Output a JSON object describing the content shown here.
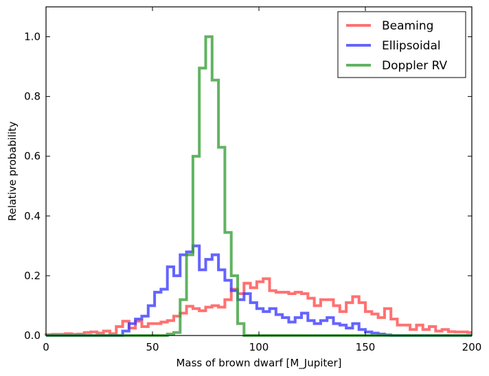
{
  "chart_data": {
    "type": "step-histogram",
    "xlabel": "Mass of brown dwarf [M_Jupiter]",
    "ylabel": "Relative probability",
    "xlim": [
      0,
      200
    ],
    "ylim": [
      0,
      1.1
    ],
    "xticks": [
      0,
      50,
      100,
      150,
      200
    ],
    "xtick_labels": [
      "0",
      "50",
      "100",
      "150",
      "200"
    ],
    "yticks": [
      0.0,
      0.2,
      0.4,
      0.6,
      0.8,
      1.0
    ],
    "ytick_labels": [
      "0.0",
      "0.2",
      "0.4",
      "0.6",
      "0.8",
      "1.0"
    ],
    "legend_position": "top-right",
    "grid": false,
    "bin_edges": [
      0,
      3,
      6,
      9,
      12,
      15,
      18,
      21,
      24,
      27,
      30,
      33,
      36,
      39,
      42,
      45,
      48,
      51,
      54,
      57,
      60,
      63,
      66,
      69,
      72,
      75,
      78,
      81,
      84,
      87,
      90,
      93,
      96,
      99,
      102,
      105,
      108,
      111,
      114,
      117,
      120,
      123,
      126,
      129,
      132,
      135,
      138,
      141,
      144,
      147,
      150,
      153,
      156,
      159,
      162,
      165,
      168,
      171,
      174,
      177,
      180,
      183,
      186,
      189,
      192,
      195,
      198,
      200
    ],
    "series": [
      {
        "name": "Beaming",
        "color": "#ff4d4d",
        "values": [
          0.003,
          0.004,
          0.004,
          0.006,
          0.004,
          0.005,
          0.01,
          0.012,
          0.008,
          0.015,
          0.006,
          0.03,
          0.048,
          0.025,
          0.048,
          0.03,
          0.04,
          0.04,
          0.045,
          0.05,
          0.065,
          0.075,
          0.098,
          0.09,
          0.083,
          0.095,
          0.1,
          0.095,
          0.12,
          0.155,
          0.14,
          0.175,
          0.16,
          0.18,
          0.19,
          0.15,
          0.145,
          0.145,
          0.14,
          0.145,
          0.14,
          0.125,
          0.1,
          0.12,
          0.12,
          0.1,
          0.08,
          0.11,
          0.13,
          0.11,
          0.08,
          0.072,
          0.06,
          0.09,
          0.055,
          0.035,
          0.035,
          0.02,
          0.035,
          0.02,
          0.03,
          0.015,
          0.02,
          0.013,
          0.012,
          0.012,
          0.01
        ]
      },
      {
        "name": "Ellipsoidal",
        "color": "#3d3dff",
        "values": [
          0,
          0,
          0,
          0,
          0,
          0,
          0,
          0,
          0,
          0,
          0,
          0,
          0.015,
          0.04,
          0.055,
          0.065,
          0.1,
          0.145,
          0.155,
          0.23,
          0.2,
          0.27,
          0.28,
          0.3,
          0.22,
          0.255,
          0.27,
          0.22,
          0.185,
          0.15,
          0.12,
          0.14,
          0.11,
          0.09,
          0.08,
          0.09,
          0.07,
          0.06,
          0.045,
          0.06,
          0.075,
          0.05,
          0.04,
          0.05,
          0.06,
          0.04,
          0.035,
          0.025,
          0.04,
          0.02,
          0.012,
          0.008,
          0.005,
          0.002,
          0,
          0,
          0,
          0,
          0,
          0,
          0,
          0,
          0,
          0,
          0,
          0,
          0
        ]
      },
      {
        "name": "Doppler RV",
        "color": "#3aa03a",
        "values": [
          0,
          0,
          0,
          0,
          0,
          0,
          0,
          0,
          0,
          0,
          0,
          0,
          0,
          0,
          0,
          0,
          0,
          0,
          0,
          0.005,
          0.01,
          0.12,
          0.27,
          0.6,
          0.895,
          1.0,
          0.855,
          0.63,
          0.345,
          0.2,
          0.04,
          0,
          0,
          0,
          0,
          0,
          0,
          0,
          0,
          0,
          0,
          0,
          0,
          0,
          0,
          0,
          0,
          0,
          0,
          0,
          0,
          0,
          0,
          0,
          0,
          0,
          0,
          0,
          0,
          0,
          0,
          0,
          0,
          0,
          0,
          0,
          0
        ]
      }
    ]
  }
}
